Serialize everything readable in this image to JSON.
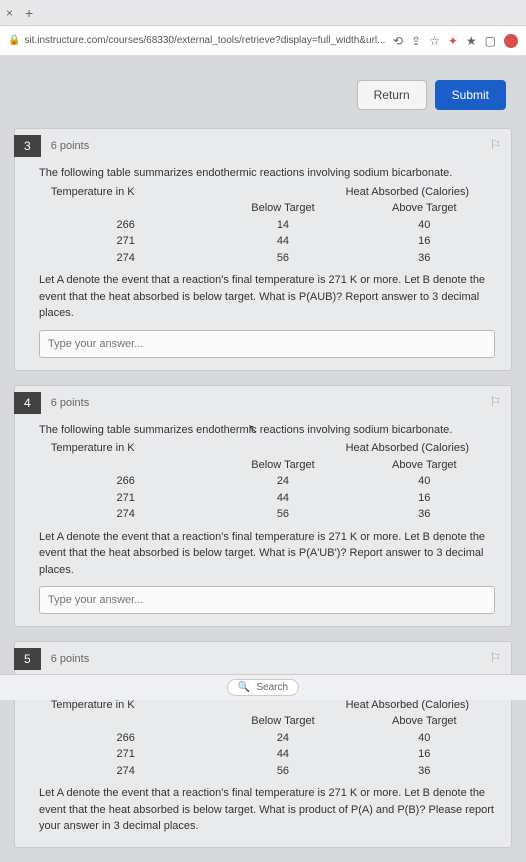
{
  "browser": {
    "url": "sit.instructure.com/courses/68330/external_tools/retrieve?display=full_width&url...",
    "tab_close": "×",
    "tab_plus": "+"
  },
  "buttons": {
    "return": "Return",
    "submit": "Submit"
  },
  "questions": [
    {
      "num": "3",
      "points": "6 points",
      "intro": "The following table summarizes endothermic reactions involving sodium bicarbonate.",
      "col_temp": "Temperature in K",
      "col_heat": "Heat Absorbed (Calories)",
      "col_below": "Below Target",
      "col_above": "Above Target",
      "rows": [
        {
          "t": "266",
          "b": "14",
          "a": "40"
        },
        {
          "t": "271",
          "b": "44",
          "a": "16"
        },
        {
          "t": "274",
          "b": "56",
          "a": "36"
        }
      ],
      "prompt": "Let A denote the event that a reaction's final temperature is 271 K or more. Let B denote the event that the heat absorbed is below target. What is P(AUB)? Report answer to 3 decimal places.",
      "placeholder": "Type your answer..."
    },
    {
      "num": "4",
      "points": "6 points",
      "intro": "The following table summarizes endothermic reactions involving sodium bicarbonate.",
      "col_temp": "Temperature in K",
      "col_heat": "Heat Absorbed (Calories)",
      "col_below": "Below Target",
      "col_above": "Above Target",
      "rows": [
        {
          "t": "266",
          "b": "24",
          "a": "40"
        },
        {
          "t": "271",
          "b": "44",
          "a": "16"
        },
        {
          "t": "274",
          "b": "56",
          "a": "36"
        }
      ],
      "prompt": "Let A denote the event that a reaction's final temperature is 271 K or more. Let B denote the event that the heat absorbed is below target. What is P(A'UB')? Report answer to 3 decimal places.",
      "placeholder": "Type your answer..."
    },
    {
      "num": "5",
      "points": "6 points",
      "intro": "The following table summarizes endothermic reactions involving sodium bicarbonate.",
      "col_temp": "Temperature in K",
      "col_heat": "Heat Absorbed (Calories)",
      "col_below": "Below Target",
      "col_above": "Above Target",
      "rows": [
        {
          "t": "266",
          "b": "24",
          "a": "40"
        },
        {
          "t": "271",
          "b": "44",
          "a": "16"
        },
        {
          "t": "274",
          "b": "56",
          "a": "36"
        }
      ],
      "prompt": "Let A denote the event that a reaction's final temperature is 271 K or more. Let B denote the event that the heat absorbed is below target. What is product of P(A) and P(B)? Please report your answer in 3 decimal places.",
      "placeholder": "Type your answer..."
    }
  ],
  "taskbar": {
    "search": "Search"
  },
  "colors": {
    "submit_bg": "#1a5fc7",
    "card_bg": "#e9eaec",
    "page_bg": "#d8d9dc",
    "qnum_bg": "#424242"
  }
}
